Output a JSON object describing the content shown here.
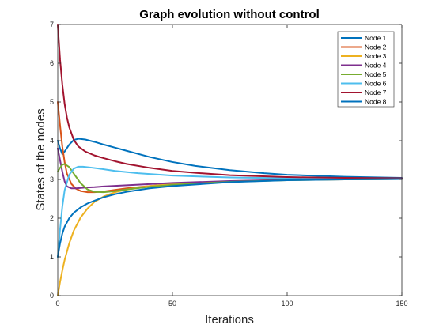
{
  "chart_data": {
    "type": "line",
    "title": "Graph evolution without control",
    "xlabel": "Iterations",
    "ylabel": "States of the nodes",
    "xlim": [
      0,
      150
    ],
    "ylim": [
      0,
      7
    ],
    "xticks": [
      0,
      50,
      100,
      150
    ],
    "yticks": [
      0,
      1,
      2,
      3,
      4,
      5,
      6,
      7
    ],
    "grid": false,
    "legend_position": "top-right",
    "series": [
      {
        "name": "Node 1",
        "color": "#0072BD",
        "x": [
          0,
          1,
          2,
          3,
          5,
          7,
          9,
          12,
          16,
          20,
          25,
          30,
          40,
          50,
          60,
          75,
          90,
          100,
          125,
          150
        ],
        "y": [
          4.0,
          3.8,
          3.65,
          3.72,
          3.9,
          4.02,
          4.05,
          4.03,
          3.97,
          3.9,
          3.82,
          3.74,
          3.58,
          3.45,
          3.35,
          3.24,
          3.16,
          3.12,
          3.07,
          3.04
        ]
      },
      {
        "name": "Node 2",
        "color": "#D95319",
        "x": [
          0,
          1,
          2,
          3,
          4,
          6,
          8,
          10,
          13,
          16,
          20,
          25,
          30,
          40,
          50,
          75,
          100,
          125,
          150
        ],
        "y": [
          5.0,
          4.4,
          3.85,
          3.45,
          3.15,
          2.88,
          2.76,
          2.7,
          2.67,
          2.67,
          2.69,
          2.73,
          2.77,
          2.83,
          2.88,
          2.95,
          2.99,
          3.01,
          3.02
        ]
      },
      {
        "name": "Node 3",
        "color": "#EDB120",
        "x": [
          0,
          1,
          2,
          3,
          5,
          7,
          10,
          13,
          16,
          20,
          25,
          30,
          40,
          50,
          75,
          100,
          125,
          150
        ],
        "y": [
          0.0,
          0.35,
          0.65,
          0.92,
          1.35,
          1.68,
          2.02,
          2.25,
          2.42,
          2.56,
          2.67,
          2.74,
          2.83,
          2.88,
          2.95,
          2.99,
          3.01,
          3.02
        ]
      },
      {
        "name": "Node 4",
        "color": "#7E2F8E",
        "x": [
          0,
          1,
          2,
          3,
          4,
          6,
          8,
          12,
          16,
          20,
          30,
          40,
          50,
          75,
          100,
          125,
          150
        ],
        "y": [
          3.8,
          3.5,
          3.2,
          2.95,
          2.82,
          2.77,
          2.77,
          2.79,
          2.8,
          2.82,
          2.85,
          2.88,
          2.91,
          2.96,
          2.99,
          3.0,
          3.01
        ]
      },
      {
        "name": "Node 5",
        "color": "#77AC30",
        "x": [
          0,
          1,
          2,
          3,
          5,
          7,
          10,
          13,
          16,
          20,
          25,
          30,
          40,
          50,
          75,
          100,
          125,
          150
        ],
        "y": [
          3.2,
          3.3,
          3.38,
          3.4,
          3.32,
          3.15,
          2.9,
          2.74,
          2.68,
          2.67,
          2.7,
          2.74,
          2.81,
          2.86,
          2.94,
          2.98,
          3.0,
          3.01
        ]
      },
      {
        "name": "Node 6",
        "color": "#4DBEEE",
        "x": [
          0,
          1,
          2,
          3,
          5,
          7,
          9,
          11,
          14,
          18,
          25,
          35,
          50,
          75,
          100,
          125,
          150
        ],
        "y": [
          1.0,
          1.7,
          2.3,
          2.72,
          3.12,
          3.28,
          3.33,
          3.33,
          3.31,
          3.28,
          3.22,
          3.16,
          3.1,
          3.05,
          3.03,
          3.02,
          3.02
        ]
      },
      {
        "name": "Node 7",
        "color": "#A2142F",
        "x": [
          0,
          1,
          2,
          3,
          4,
          5,
          7,
          9,
          12,
          16,
          20,
          25,
          30,
          40,
          50,
          60,
          75,
          100,
          125,
          150
        ],
        "y": [
          7.0,
          6.1,
          5.45,
          4.95,
          4.6,
          4.35,
          4.02,
          3.85,
          3.72,
          3.62,
          3.55,
          3.47,
          3.4,
          3.3,
          3.22,
          3.17,
          3.11,
          3.06,
          3.04,
          3.03
        ]
      },
      {
        "name": "Node 8",
        "color": "#0072BD",
        "x": [
          0,
          1,
          2,
          3,
          5,
          7,
          10,
          13,
          16,
          20,
          25,
          30,
          40,
          50,
          75,
          100,
          125,
          150
        ],
        "y": [
          1.0,
          1.35,
          1.6,
          1.78,
          2.0,
          2.14,
          2.28,
          2.38,
          2.45,
          2.54,
          2.62,
          2.68,
          2.77,
          2.83,
          2.93,
          2.98,
          3.0,
          3.01
        ]
      }
    ]
  }
}
